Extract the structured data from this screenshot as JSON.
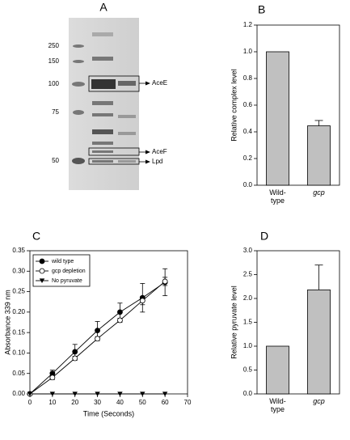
{
  "gel": {
    "label": "A",
    "markers": [
      250,
      150,
      100,
      75,
      50
    ],
    "bands": [
      "AceE",
      "AceF",
      "Lpd"
    ]
  },
  "chart_data": [
    {
      "type": "bar",
      "label": "B",
      "ylabel": "Relative complex level",
      "categories": [
        "Wild-type",
        "gcp"
      ],
      "values": [
        1.0,
        0.445
      ],
      "errors": [
        null,
        0.04
      ],
      "color": "#c0c0c0",
      "ylim": [
        0,
        1.2
      ],
      "yticks": [
        {
          "value": 0,
          "label": "0.0"
        },
        {
          "value": 0.2,
          "label": "0.2"
        },
        {
          "value": 0.4,
          "label": "0.4"
        },
        {
          "value": 0.6,
          "label": "0.6"
        },
        {
          "value": 0.8,
          "label": "0.8"
        },
        {
          "value": 1.0,
          "label": "1.0"
        },
        {
          "value": 1.2,
          "label": "1.2"
        }
      ]
    },
    {
      "type": "line",
      "label": "C",
      "xlabel": "Time (Seconds)",
      "ylabel": "Absorbance 339 nm",
      "x": [
        0,
        10,
        20,
        30,
        40,
        50,
        60
      ],
      "xlim": [
        0,
        70
      ],
      "xticks": [
        0,
        10,
        20,
        30,
        40,
        50,
        60,
        70
      ],
      "ylim": [
        0,
        0.35
      ],
      "yticks": [
        {
          "value": 0,
          "label": "0.00"
        },
        {
          "value": 0.05,
          "label": "0.05"
        },
        {
          "value": 0.1,
          "label": "0.10"
        },
        {
          "value": 0.15,
          "label": "0.15"
        },
        {
          "value": 0.2,
          "label": "0.20"
        },
        {
          "value": 0.25,
          "label": "0.25"
        },
        {
          "value": 0.3,
          "label": "0.30"
        },
        {
          "value": 0.35,
          "label": "0.35"
        }
      ],
      "legend": "upper left",
      "series": [
        {
          "name": "wild type",
          "color": "#000000",
          "marker": "filled-circle",
          "values": [
            0,
            0.05,
            0.103,
            0.155,
            0.2,
            0.235,
            0.273
          ],
          "errors": [
            0,
            0.008,
            0.018,
            0.022,
            0.022,
            0.035,
            0.033
          ]
        },
        {
          "name": "gcp depletion",
          "color": "#000000",
          "marker": "open-circle",
          "values": [
            0,
            0.04,
            0.087,
            0.135,
            0.18,
            0.228,
            0.275
          ],
          "errors": [
            0,
            0.005,
            0.005,
            0.005,
            0.005,
            0.01,
            0.01
          ]
        },
        {
          "name": "No pyruvate",
          "color": "#000000",
          "marker": "triangle-down",
          "values": [
            0,
            0,
            0,
            0,
            0,
            0,
            0
          ]
        }
      ]
    },
    {
      "type": "bar",
      "label": "D",
      "ylabel": "Relative pyruvate level",
      "categories": [
        "Wild-type",
        "gcp"
      ],
      "values": [
        1.0,
        2.18
      ],
      "errors": [
        null,
        0.52
      ],
      "color": "#c0c0c0",
      "ylim": [
        0,
        3.0
      ],
      "yticks": [
        {
          "value": 0,
          "label": "0.0"
        },
        {
          "value": 0.5,
          "label": "0.5"
        },
        {
          "value": 1.0,
          "label": "1.0"
        },
        {
          "value": 1.5,
          "label": "1.5"
        },
        {
          "value": 2.0,
          "label": "2.0"
        },
        {
          "value": 2.5,
          "label": "2.5"
        },
        {
          "value": 3.0,
          "label": "3.0"
        }
      ]
    }
  ]
}
